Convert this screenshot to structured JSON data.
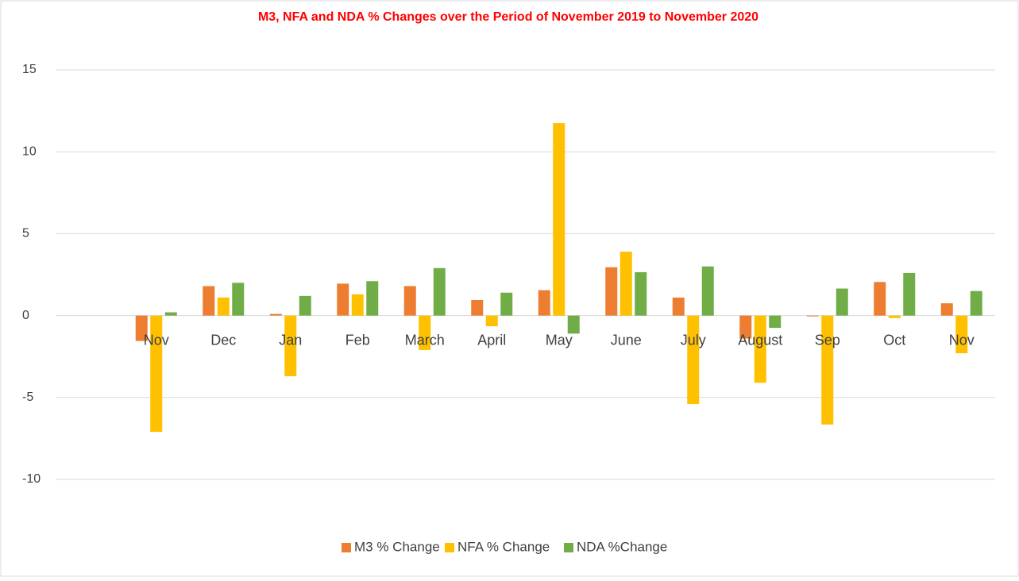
{
  "chart_data": {
    "type": "bar",
    "title": "M3, NFA and NDA % Changes over the Period of November 2019 to November 2020",
    "categories": [
      null,
      "Nov",
      "Dec",
      "Jan",
      "Feb",
      "March",
      "April",
      "May",
      "June",
      "July",
      "August",
      "Sep",
      "Oct",
      "Nov"
    ],
    "series": [
      {
        "name": "M3 % Change",
        "color": "#ed7d31",
        "values": [
          null,
          -1.55,
          1.8,
          0.1,
          1.95,
          1.8,
          0.95,
          1.55,
          2.95,
          1.1,
          -1.4,
          -0.05,
          2.05,
          0.75
        ]
      },
      {
        "name": "NFA % Change",
        "color": "#ffc000",
        "values": [
          null,
          -7.1,
          1.1,
          -3.7,
          1.3,
          -2.1,
          -0.65,
          11.75,
          3.9,
          -5.4,
          -4.1,
          -6.65,
          -0.15,
          -2.3
        ]
      },
      {
        "name": "NDA %Change",
        "color": "#70ad47",
        "values": [
          null,
          0.2,
          2.0,
          1.2,
          2.1,
          2.9,
          1.4,
          -1.1,
          2.65,
          3.0,
          -0.75,
          1.65,
          2.6,
          1.5
        ]
      }
    ],
    "ylim": [
      -10,
      15
    ],
    "yticks": [
      -10,
      -5,
      0,
      5,
      10,
      15
    ],
    "grid": true,
    "legend": "bottom"
  }
}
